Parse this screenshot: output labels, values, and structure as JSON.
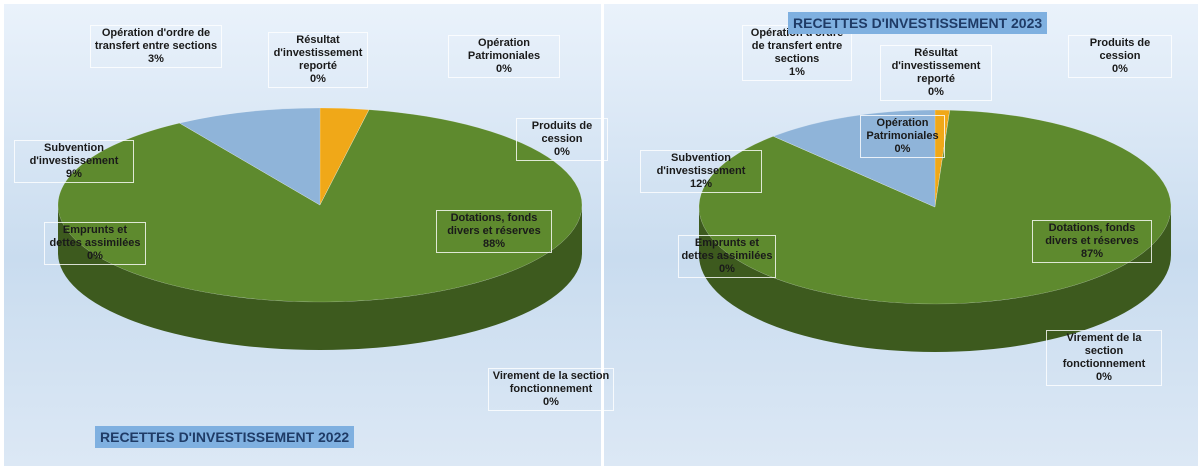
{
  "chart_data": [
    {
      "type": "pie",
      "title": "RECETTES D'INVESTISSEMENT 2022",
      "categories": [
        "Opération d'ordre de transfert entre sections",
        "Résultat d'investissement reporté",
        "Opération Patrimoniales",
        "Produits de cession",
        "Dotations, fonds divers et réserves",
        "Virement de la section fonctionnement",
        "Emprunts et dettes assimilées",
        "Subvention d'investissement"
      ],
      "values": [
        3,
        0,
        0,
        0,
        88,
        0,
        0,
        9
      ],
      "value_labels": [
        "3%",
        "0%",
        "0%",
        "0%",
        "88%",
        "0%",
        "0%",
        "9%"
      ],
      "colors": [
        "#f0a818",
        "#c0504d",
        "#8064a2",
        "#4bacc6",
        "#5e8a2e",
        "#f79646",
        "#9bbb59",
        "#8fb4d9"
      ]
    },
    {
      "type": "pie",
      "title": "RECETTES D'INVESTISSEMENT 2023",
      "categories": [
        "Opération d'ordre de transfert entre sections",
        "Résultat d'investissement reporté",
        "Opération Patrimoniales",
        "Produits de cession",
        "Dotations, fonds divers et réserves",
        "Virement de la section fonctionnement",
        "Emprunts et dettes assimilées",
        "Subvention d'investissement"
      ],
      "values": [
        1,
        0,
        0,
        0,
        87,
        0,
        0,
        12
      ],
      "value_labels": [
        "1%",
        "0%",
        "0%",
        "0%",
        "87%",
        "0%",
        "0%",
        "12%"
      ],
      "colors": [
        "#f0a818",
        "#c0504d",
        "#8064a2",
        "#4bacc6",
        "#5e8a2e",
        "#f79646",
        "#9bbb59",
        "#8fb4d9"
      ]
    }
  ]
}
